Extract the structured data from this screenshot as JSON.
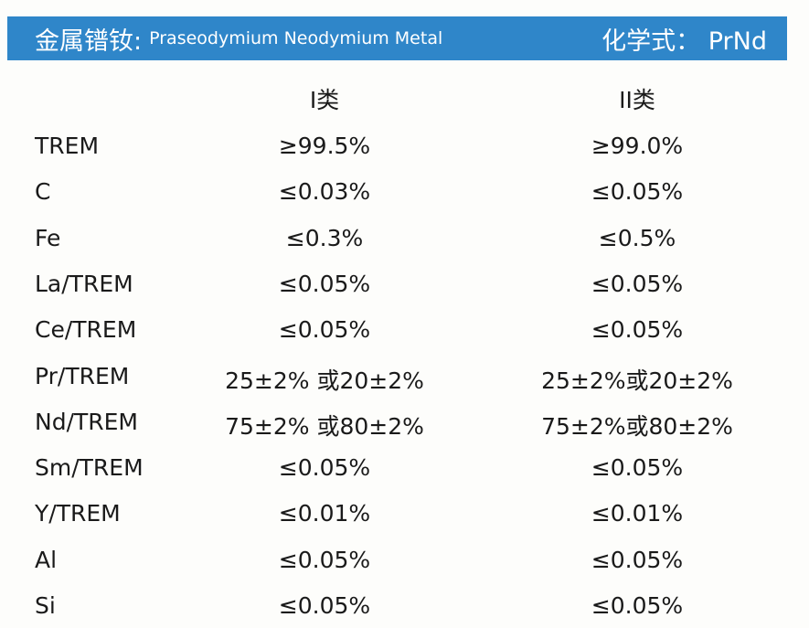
{
  "header": {
    "title_cn": "金属镨钕:",
    "title_en": "Praseodymium Neodymium Metal",
    "formula": "化学式： PrNd"
  },
  "table": {
    "columns": [
      "I类",
      "II类"
    ],
    "rows": [
      [
        "TREM",
        "≥99.5%",
        "≥99.0%"
      ],
      [
        "C",
        "≤0.03%",
        "≤0.05%"
      ],
      [
        "Fe",
        "≤0.3%",
        "≤0.5%"
      ],
      [
        "La/TREM",
        "≤0.05%",
        "≤0.05%"
      ],
      [
        "Ce/TREM",
        "≤0.05%",
        "≤0.05%"
      ],
      [
        "Pr/TREM",
        "25±2% 或20±2%",
        "25±2%或20±2%"
      ],
      [
        "Nd/TREM",
        "75±2% 或80±2%",
        "75±2%或80±2%"
      ],
      [
        "Sm/TREM",
        "≤0.05%",
        "≤0.05%"
      ],
      [
        "Y/TREM",
        "≤0.01%",
        "≤0.01%"
      ],
      [
        "Al",
        "≤0.05%",
        "≤0.05%"
      ],
      [
        "Si",
        "≤0.05%",
        "≤0.05%"
      ]
    ]
  }
}
